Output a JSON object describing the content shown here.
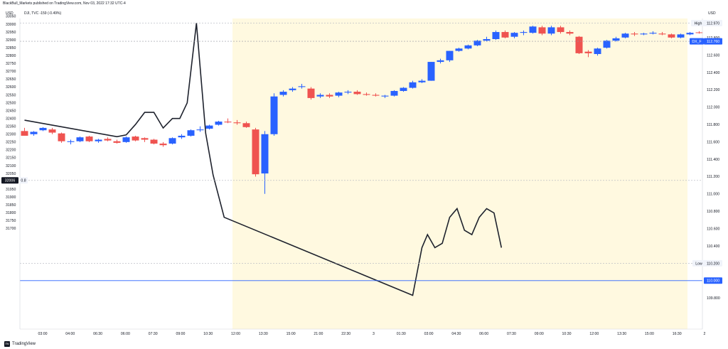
{
  "header": {
    "published": "BlackBull_Markets published on TradingView.com, Nov 03, 2022 17:32 UTC-4"
  },
  "symbol_line": "DJI, TVC  -159 (-0.49%)",
  "left_unit": "USD",
  "right_unit": "USD",
  "footer": {
    "logo": "TV",
    "brand": "TradingView"
  },
  "colors": {
    "up": "#2962ff",
    "down": "#ef5350",
    "line": "#1e222d",
    "session": "#fff9e0",
    "level": "#2962ff",
    "grid": "#eef0f3"
  },
  "chart_data": {
    "type": "candlestick+line",
    "y_left_ticks": [
      "33050",
      "33000",
      "32950",
      "32900",
      "32850",
      "32800",
      "32750",
      "32700",
      "32650",
      "32600",
      "32550",
      "32500",
      "32450",
      "32400",
      "32350",
      "32300",
      "32250",
      "32200",
      "32150",
      "32100",
      "32050",
      "32000",
      "31950",
      "31900",
      "31850",
      "31800",
      "31750",
      "31700"
    ],
    "y_right_ticks": [
      "112.800",
      "112.600",
      "112.400",
      "112.200",
      "112.000",
      "111.800",
      "111.600",
      "111.400",
      "111.200",
      "111.000",
      "110.800",
      "110.600",
      "110.400",
      "110.200",
      "110.000",
      "109.800"
    ],
    "x_ticks": [
      "03:00",
      "04:00",
      "06:30",
      "06:00",
      "07:30",
      "09:00",
      "10:30",
      "12:00",
      "13:30",
      "15:00",
      "21:00",
      "22:30",
      "3",
      "01:30",
      "03:00",
      "04:30",
      "06:00",
      "07:30",
      "09:00",
      "10:30",
      "12:00",
      "13:30",
      "15:00",
      "16:30",
      "2"
    ],
    "left_labels": {
      "price": "32006",
      "change": "0.8"
    },
    "right_labels": {
      "high_word": "High",
      "high": "112.970",
      "sym": "DX_F",
      "last": "112.760",
      "low_word": "Low",
      "low": "110.200",
      "level": "110.000"
    },
    "session_shading": {
      "x_from": "13:30",
      "x_to": "16:30"
    },
    "dji_candles": [
      {
        "o": 32320,
        "h": 32340,
        "l": 32295,
        "c": 32290
      },
      {
        "o": 32300,
        "h": 32320,
        "l": 32290,
        "c": 32315
      },
      {
        "o": 32325,
        "h": 32345,
        "l": 32320,
        "c": 32340
      },
      {
        "o": 32330,
        "h": 32340,
        "l": 32300,
        "c": 32310
      },
      {
        "o": 32305,
        "h": 32310,
        "l": 32245,
        "c": 32255
      },
      {
        "o": 32250,
        "h": 32265,
        "l": 32235,
        "c": 32255
      },
      {
        "o": 32255,
        "h": 32285,
        "l": 32250,
        "c": 32280
      },
      {
        "o": 32285,
        "h": 32290,
        "l": 32250,
        "c": 32255
      },
      {
        "o": 32255,
        "h": 32270,
        "l": 32245,
        "c": 32265
      },
      {
        "o": 32270,
        "h": 32280,
        "l": 32255,
        "c": 32260
      },
      {
        "o": 32255,
        "h": 32265,
        "l": 32240,
        "c": 32245
      },
      {
        "o": 32250,
        "h": 32285,
        "l": 32245,
        "c": 32280
      },
      {
        "o": 32285,
        "h": 32290,
        "l": 32255,
        "c": 32260
      },
      {
        "o": 32275,
        "h": 32280,
        "l": 32250,
        "c": 32265
      },
      {
        "o": 32265,
        "h": 32270,
        "l": 32235,
        "c": 32240
      },
      {
        "o": 32240,
        "h": 32250,
        "l": 32220,
        "c": 32230
      },
      {
        "o": 32240,
        "h": 32280,
        "l": 32235,
        "c": 32275
      },
      {
        "o": 32280,
        "h": 32300,
        "l": 32270,
        "c": 32290
      },
      {
        "o": 32290,
        "h": 32330,
        "l": 32285,
        "c": 32325
      },
      {
        "o": 32325,
        "h": 32350,
        "l": 32315,
        "c": 32330
      },
      {
        "o": 32335,
        "h": 32360,
        "l": 32330,
        "c": 32355
      },
      {
        "o": 32360,
        "h": 32385,
        "l": 32355,
        "c": 32380
      },
      {
        "o": 32380,
        "h": 32400,
        "l": 32370,
        "c": 32375
      },
      {
        "o": 32375,
        "h": 32390,
        "l": 32360,
        "c": 32370
      },
      {
        "o": 32370,
        "h": 32380,
        "l": 32340,
        "c": 32345
      },
      {
        "o": 32330,
        "h": 32340,
        "l": 32030,
        "c": 32045
      },
      {
        "o": 32050,
        "h": 32320,
        "l": 31920,
        "c": 32300
      },
      {
        "o": 32300,
        "h": 32560,
        "l": 32290,
        "c": 32540
      },
      {
        "o": 32550,
        "h": 32580,
        "l": 32540,
        "c": 32570
      },
      {
        "o": 32580,
        "h": 32600,
        "l": 32570,
        "c": 32590
      },
      {
        "o": 32600,
        "h": 32620,
        "l": 32590,
        "c": 32605
      },
      {
        "o": 32590,
        "h": 32600,
        "l": 32520,
        "c": 32530
      },
      {
        "o": 32540,
        "h": 32560,
        "l": 32530,
        "c": 32550
      },
      {
        "o": 32550,
        "h": 32560,
        "l": 32530,
        "c": 32540
      },
      {
        "o": 32545,
        "h": 32570,
        "l": 32535,
        "c": 32565
      },
      {
        "o": 32565,
        "h": 32580,
        "l": 32555,
        "c": 32570
      },
      {
        "o": 32570,
        "h": 32580,
        "l": 32550,
        "c": 32555
      },
      {
        "o": 32555,
        "h": 32565,
        "l": 32545,
        "c": 32550
      },
      {
        "o": 32550,
        "h": 32560,
        "l": 32540,
        "c": 32545
      },
      {
        "o": 32540,
        "h": 32550,
        "l": 32530,
        "c": 32545
      },
      {
        "o": 32545,
        "h": 32580,
        "l": 32540,
        "c": 32575
      },
      {
        "o": 32575,
        "h": 32600,
        "l": 32570,
        "c": 32595
      },
      {
        "o": 32595,
        "h": 32640,
        "l": 32590,
        "c": 32630
      },
      {
        "o": 32630,
        "h": 32650,
        "l": 32625,
        "c": 32640
      },
      {
        "o": 32640,
        "h": 32760,
        "l": 32640,
        "c": 32760
      },
      {
        "o": 32760,
        "h": 32780,
        "l": 32750,
        "c": 32770
      },
      {
        "o": 32770,
        "h": 32830,
        "l": 32760,
        "c": 32830
      },
      {
        "o": 32830,
        "h": 32850,
        "l": 32825,
        "c": 32845
      },
      {
        "o": 32845,
        "h": 32870,
        "l": 32840,
        "c": 32865
      },
      {
        "o": 32865,
        "h": 32900,
        "l": 32860,
        "c": 32895
      },
      {
        "o": 32895,
        "h": 32920,
        "l": 32890,
        "c": 32905
      },
      {
        "o": 32905,
        "h": 32960,
        "l": 32900,
        "c": 32950
      },
      {
        "o": 32950,
        "h": 32960,
        "l": 32910,
        "c": 32915
      },
      {
        "o": 32920,
        "h": 32950,
        "l": 32910,
        "c": 32945
      },
      {
        "o": 32945,
        "h": 32960,
        "l": 32930,
        "c": 32950
      },
      {
        "o": 32945,
        "h": 32990,
        "l": 32940,
        "c": 32985
      },
      {
        "o": 32980,
        "h": 32990,
        "l": 32930,
        "c": 32940
      },
      {
        "o": 32940,
        "h": 32990,
        "l": 32930,
        "c": 32980
      },
      {
        "o": 32980,
        "h": 32990,
        "l": 32940,
        "c": 32950
      },
      {
        "o": 32950,
        "h": 32960,
        "l": 32930,
        "c": 32940
      },
      {
        "o": 32920,
        "h": 32925,
        "l": 32810,
        "c": 32815
      },
      {
        "o": 32825,
        "h": 32835,
        "l": 32790,
        "c": 32815
      },
      {
        "o": 32810,
        "h": 32850,
        "l": 32800,
        "c": 32845
      },
      {
        "o": 32850,
        "h": 32900,
        "l": 32845,
        "c": 32895
      },
      {
        "o": 32895,
        "h": 32920,
        "l": 32890,
        "c": 32910
      },
      {
        "o": 32915,
        "h": 32945,
        "l": 32910,
        "c": 32940
      },
      {
        "o": 32940,
        "h": 32950,
        "l": 32925,
        "c": 32935
      },
      {
        "o": 32935,
        "h": 32945,
        "l": 32930,
        "c": 32940
      },
      {
        "o": 32940,
        "h": 32955,
        "l": 32935,
        "c": 32945
      },
      {
        "o": 32940,
        "h": 32950,
        "l": 32930,
        "c": 32935
      },
      {
        "o": 32935,
        "h": 32940,
        "l": 32910,
        "c": 32915
      },
      {
        "o": 32915,
        "h": 32940,
        "l": 32910,
        "c": 32935
      },
      {
        "o": 32935,
        "h": 32950,
        "l": 32930,
        "c": 32945
      },
      {
        "o": 32948,
        "h": 32955,
        "l": 32940,
        "c": 32945
      }
    ],
    "dx_line": [
      {
        "t": 0,
        "v": 111.85
      },
      {
        "t": 10,
        "v": 111.66
      },
      {
        "t": 11,
        "v": 111.68
      },
      {
        "t": 12,
        "v": 111.8
      },
      {
        "t": 13,
        "v": 111.94
      },
      {
        "t": 14,
        "v": 111.94
      },
      {
        "t": 15,
        "v": 111.76
      },
      {
        "t": 16,
        "v": 111.87
      },
      {
        "t": 16.8,
        "v": 111.87
      },
      {
        "t": 17.6,
        "v": 112.05
      },
      {
        "t": 18.6,
        "v": 112.97
      },
      {
        "t": 19.6,
        "v": 111.7
      },
      {
        "t": 20.4,
        "v": 111.22
      },
      {
        "t": 21.6,
        "v": 110.73
      },
      {
        "t": 42,
        "v": 109.83
      },
      {
        "t": 43,
        "v": 110.38
      },
      {
        "t": 43.6,
        "v": 110.53
      },
      {
        "t": 44.4,
        "v": 110.38
      },
      {
        "t": 45.2,
        "v": 110.43
      },
      {
        "t": 46,
        "v": 110.73
      },
      {
        "t": 46.8,
        "v": 110.83
      },
      {
        "t": 47.6,
        "v": 110.58
      },
      {
        "t": 48.4,
        "v": 110.53
      },
      {
        "t": 49.2,
        "v": 110.73
      },
      {
        "t": 50,
        "v": 110.83
      },
      {
        "t": 50.8,
        "v": 110.78
      },
      {
        "t": 51.6,
        "v": 110.38
      }
    ]
  }
}
